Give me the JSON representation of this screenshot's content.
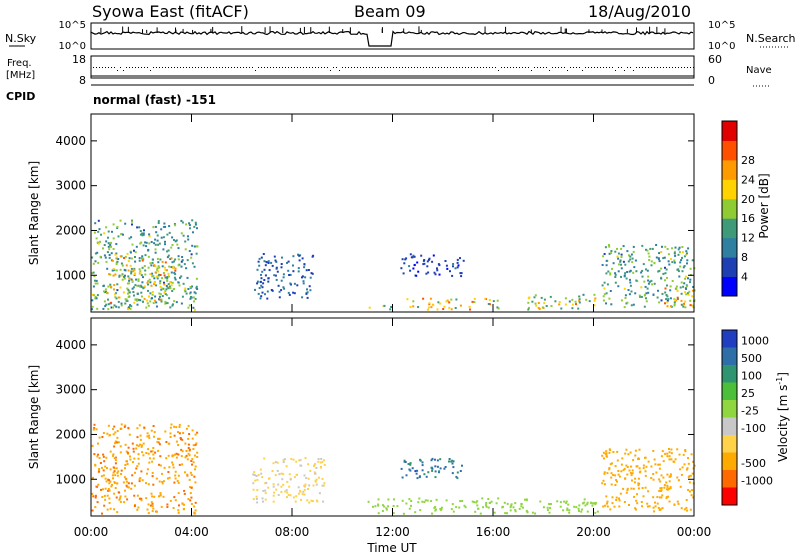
{
  "header": {
    "station": "Syowa East (fitACF)",
    "beam": "Beam 09",
    "date": "18/Aug/2010"
  },
  "noise_panel": {
    "left_label": "N.Sky",
    "right_label": "N.Search",
    "left_ticks": [
      "10^5",
      "10^0"
    ],
    "right_ticks": [
      "10^5",
      "10^0"
    ]
  },
  "freq_panel": {
    "left_label_1": "Freq.",
    "left_label_2": "[MHz]",
    "left_ticks": [
      "18",
      "8"
    ],
    "right_label": "Nave",
    "right_ticks": [
      "60",
      "0"
    ],
    "cpid_label": "CPID",
    "cpid_value": "normal (fast) -151"
  },
  "chart_data": [
    {
      "type": "heatmap",
      "panel": "power",
      "xlabel": "",
      "ylabel": "Slant Range [km]",
      "ylim": [
        180,
        4600
      ],
      "y_ticks": [
        "1000",
        "2000",
        "3000",
        "4000"
      ],
      "xlim_hours": [
        0,
        24
      ],
      "colorbar": {
        "label": "Power [dB]",
        "levels": [
          0,
          4,
          8,
          12,
          16,
          20,
          24,
          28,
          32
        ],
        "tick_labels": [
          "4",
          "8",
          "12",
          "16",
          "20",
          "24",
          "28"
        ],
        "colors": [
          "#0000ff",
          "#1e3fb4",
          "#2f7fa0",
          "#3f9a7a",
          "#8fcc33",
          "#ffd200",
          "#ff9a00",
          "#ff5000",
          "#e00000"
        ]
      },
      "patches": [
        {
          "t0": 0.0,
          "t1": 4.2,
          "r0": 250,
          "r1": 2250,
          "level": 14
        },
        {
          "t0": 0.6,
          "t1": 3.4,
          "r0": 400,
          "r1": 1500,
          "level": 20
        },
        {
          "t0": 6.4,
          "t1": 8.8,
          "r0": 500,
          "r1": 1500,
          "level": 8
        },
        {
          "t0": 11.0,
          "t1": 12.0,
          "r0": 250,
          "r1": 350,
          "level": 18
        },
        {
          "t0": 12.3,
          "t1": 14.8,
          "r0": 1000,
          "r1": 1500,
          "level": 6
        },
        {
          "t0": 12.5,
          "t1": 16.2,
          "r0": 250,
          "r1": 500,
          "level": 22
        },
        {
          "t0": 17.3,
          "t1": 20.2,
          "r0": 250,
          "r1": 600,
          "level": 20
        },
        {
          "t0": 20.3,
          "t1": 24.0,
          "r0": 300,
          "r1": 1700,
          "level": 14
        },
        {
          "t0": 22.6,
          "t1": 24.0,
          "r0": 300,
          "r1": 800,
          "level": 22
        }
      ]
    },
    {
      "type": "heatmap",
      "panel": "velocity",
      "xlabel": "Time UT",
      "ylabel": "Slant Range [km]",
      "ylim": [
        180,
        4600
      ],
      "y_ticks": [
        "1000",
        "2000",
        "3000",
        "4000"
      ],
      "x_ticks": [
        "00:00",
        "04:00",
        "08:00",
        "12:00",
        "16:00",
        "20:00",
        "00:00"
      ],
      "xlim_hours": [
        0,
        24
      ],
      "colorbar": {
        "label": "Velocity [m s^-1]",
        "tick_labels": [
          "1000",
          "500",
          "100",
          "25",
          "-25",
          "-100",
          "-500",
          "-1000"
        ],
        "colors": [
          "#1f3fc0",
          "#2f6fa8",
          "#2f9470",
          "#4cbf3a",
          "#8fd640",
          "#c8c8c8",
          "#ffd24a",
          "#ffaa00",
          "#ff6a00",
          "#ff0000"
        ]
      },
      "patches": [
        {
          "t0": 0.0,
          "t1": 4.2,
          "r0": 250,
          "r1": 2250,
          "level": -250
        },
        {
          "t0": 6.4,
          "t1": 9.3,
          "r0": 500,
          "r1": 1500,
          "level": -30
        },
        {
          "t0": 12.3,
          "t1": 14.8,
          "r0": 1000,
          "r1": 1500,
          "level": 700
        },
        {
          "t0": 11.0,
          "t1": 20.2,
          "r0": 250,
          "r1": 600,
          "level": 60
        },
        {
          "t0": 20.3,
          "t1": 24.0,
          "r0": 300,
          "r1": 1700,
          "level": -200
        }
      ]
    }
  ]
}
